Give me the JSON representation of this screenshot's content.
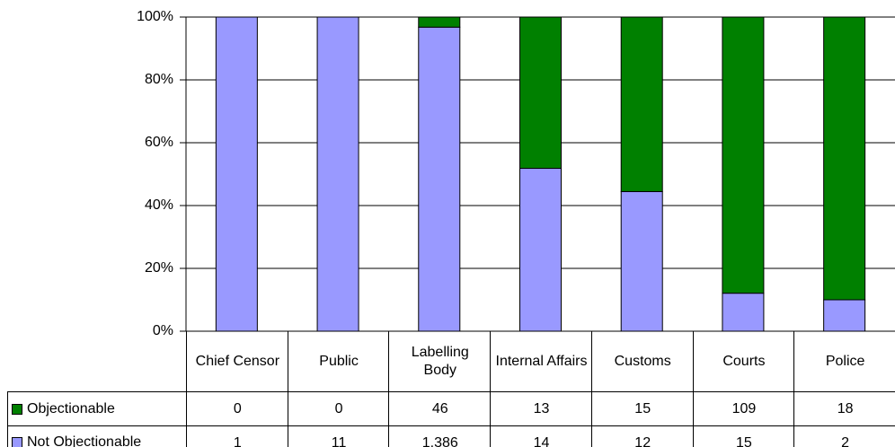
{
  "chart_data": {
    "type": "bar",
    "stacked_percent": true,
    "categories": [
      "Chief Censor",
      "Public",
      "Labelling Body",
      "Internal Affairs",
      "Customs",
      "Courts",
      "Police"
    ],
    "series": [
      {
        "name": "Objectionable",
        "color": "#008000",
        "values": [
          0,
          0,
          46,
          13,
          15,
          109,
          18
        ]
      },
      {
        "name": "Not Objectionable",
        "color": "#9999ff",
        "values": [
          1,
          11,
          1386,
          14,
          12,
          15,
          2
        ],
        "value_labels": [
          "1",
          "11",
          "1,386",
          "14",
          "12",
          "15",
          "2"
        ]
      }
    ],
    "ylim": [
      0,
      100
    ],
    "yticks": [
      {
        "value": 0,
        "label": "0%"
      },
      {
        "value": 20,
        "label": "20%"
      },
      {
        "value": 40,
        "label": "40%"
      },
      {
        "value": 60,
        "label": "60%"
      },
      {
        "value": 80,
        "label": "80%"
      },
      {
        "value": 100,
        "label": "100%"
      }
    ],
    "grid": true
  }
}
